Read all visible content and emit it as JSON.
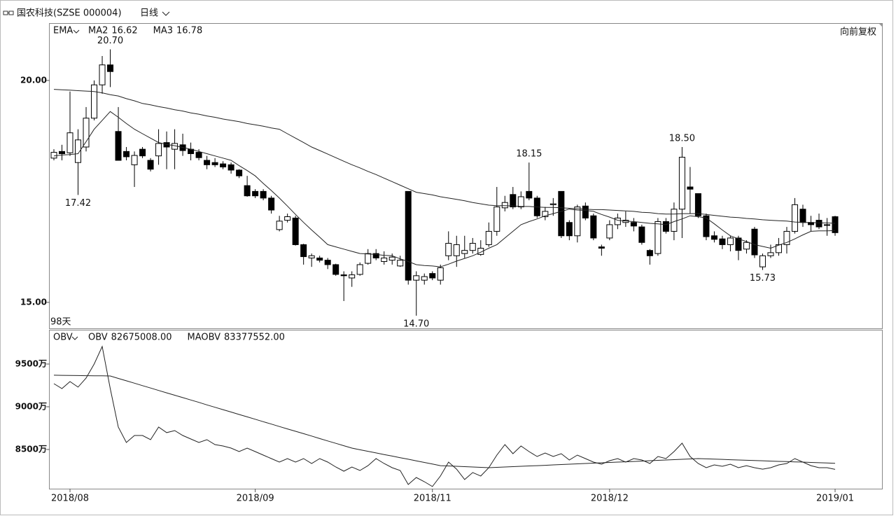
{
  "chart_data": [
    {
      "type": "candlestick",
      "title": "国农科技(SZSE 000004)",
      "period": "日线",
      "indicator": "EMA",
      "adjust": "向前复权",
      "span": "98天",
      "ylim": [
        14.43,
        21.26
      ],
      "yticks": [
        {
          "value": 20,
          "label": "20.00"
        },
        {
          "value": 15,
          "label": "15.00"
        }
      ],
      "up_color": "#ffffff",
      "down_color": "#000000",
      "open": [
        18.25,
        18.4,
        18.37,
        18.15,
        18.5,
        19.15,
        19.9,
        20.35,
        18.85,
        18.4,
        18.1,
        18.45,
        18.2,
        18.3,
        18.6,
        18.45,
        18.55,
        18.45,
        18.38,
        18.2,
        18.15,
        18.12,
        18.1,
        17.98,
        17.63,
        17.5,
        17.5,
        17.35,
        16.64,
        16.85,
        16.9,
        16.3,
        16.0,
        16.0,
        15.95,
        15.85,
        15.62,
        15.55,
        15.63,
        15.88,
        16.1,
        15.92,
        15.95,
        15.82,
        17.5,
        15.5,
        15.5,
        15.65,
        15.5,
        16.05,
        16.05,
        16.1,
        16.17,
        16.08,
        16.3,
        16.6,
        17.13,
        17.43,
        17.15,
        17.5,
        17.35,
        16.93,
        17.2,
        17.5,
        16.8,
        16.5,
        17.17,
        16.95,
        16.25,
        16.45,
        16.75,
        16.8,
        16.8,
        16.7,
        16.17,
        16.1,
        16.82,
        16.6,
        17.1,
        17.6,
        17.45,
        16.95,
        16.5,
        16.43,
        16.3,
        16.45,
        16.2,
        16.65,
        15.8,
        16.05,
        16.12,
        16.3,
        16.6,
        17.1,
        16.8,
        16.85,
        16.75,
        16.93
      ],
      "high": [
        18.45,
        18.55,
        19.75,
        18.9,
        19.4,
        20.0,
        20.55,
        20.7,
        19.4,
        18.5,
        18.4,
        18.5,
        18.25,
        18.9,
        18.85,
        18.9,
        18.8,
        18.6,
        18.45,
        18.3,
        18.25,
        18.18,
        18.15,
        18.0,
        17.85,
        17.55,
        17.55,
        17.4,
        16.95,
        17.0,
        16.95,
        16.32,
        16.1,
        16.05,
        16.0,
        15.87,
        15.7,
        15.7,
        15.9,
        16.2,
        16.2,
        16.15,
        16.1,
        16.05,
        17.5,
        15.7,
        15.65,
        15.7,
        15.85,
        16.6,
        16.5,
        16.5,
        16.45,
        16.4,
        16.8,
        17.6,
        17.4,
        17.6,
        17.5,
        18.15,
        17.4,
        17.15,
        17.35,
        17.5,
        16.85,
        17.2,
        17.25,
        17.0,
        16.3,
        16.85,
        17.0,
        17.05,
        16.9,
        16.75,
        16.2,
        16.9,
        16.9,
        17.25,
        18.5,
        18.05,
        17.45,
        17.0,
        16.6,
        16.5,
        16.5,
        16.5,
        16.4,
        16.7,
        16.1,
        16.3,
        16.45,
        16.7,
        17.35,
        17.2,
        16.95,
        17.0,
        16.9,
        16.95
      ],
      "low": [
        18.2,
        18.2,
        18.3,
        17.42,
        18.4,
        19.1,
        19.7,
        19.85,
        18.2,
        18.2,
        17.6,
        18.25,
        17.95,
        18.1,
        18.0,
        18.0,
        18.3,
        18.2,
        18.2,
        18.0,
        18.05,
        18.0,
        17.9,
        17.8,
        17.38,
        17.35,
        17.3,
        17.0,
        16.6,
        16.8,
        16.28,
        15.85,
        15.8,
        15.9,
        15.75,
        15.6,
        15.03,
        15.35,
        15.6,
        15.85,
        15.95,
        15.85,
        15.85,
        15.8,
        15.4,
        14.7,
        15.4,
        15.5,
        15.4,
        15.95,
        15.8,
        16.0,
        16.1,
        16.05,
        16.25,
        16.5,
        17.05,
        17.1,
        17.1,
        17.3,
        16.9,
        16.85,
        16.95,
        16.45,
        16.4,
        16.35,
        16.85,
        16.4,
        16.05,
        16.4,
        16.65,
        16.7,
        16.6,
        16.3,
        15.85,
        16.05,
        16.55,
        16.4,
        16.45,
        17.0,
        16.9,
        16.4,
        16.35,
        16.2,
        16.15,
        15.95,
        16.1,
        16.0,
        15.73,
        16.0,
        16.05,
        16.1,
        16.55,
        16.7,
        16.6,
        16.65,
        16.5,
        16.5
      ],
      "close": [
        18.38,
        18.35,
        18.82,
        18.66,
        19.15,
        19.9,
        20.35,
        20.2,
        18.2,
        18.28,
        18.31,
        18.3,
        18.0,
        18.58,
        18.5,
        18.58,
        18.42,
        18.35,
        18.26,
        18.1,
        18.1,
        18.05,
        17.98,
        17.85,
        17.4,
        17.4,
        17.35,
        17.08,
        16.83,
        16.93,
        16.3,
        16.03,
        16.05,
        15.95,
        15.85,
        15.63,
        15.6,
        15.62,
        15.85,
        16.1,
        16.0,
        16.0,
        16.02,
        15.95,
        15.5,
        15.6,
        15.58,
        15.55,
        15.78,
        16.33,
        16.3,
        16.17,
        16.33,
        16.22,
        16.6,
        17.15,
        17.25,
        17.15,
        17.38,
        17.35,
        16.95,
        17.05,
        17.22,
        16.5,
        16.5,
        17.15,
        16.9,
        16.45,
        16.22,
        16.75,
        16.9,
        16.85,
        16.72,
        16.35,
        16.05,
        16.82,
        16.6,
        17.1,
        18.27,
        17.55,
        16.95,
        16.48,
        16.42,
        16.3,
        16.45,
        16.17,
        16.35,
        16.07,
        16.05,
        16.12,
        16.3,
        16.6,
        17.2,
        16.8,
        16.75,
        16.7,
        16.75,
        16.57
      ],
      "series": [
        {
          "name": "MA2",
          "value_label": "16.62",
          "color": "#222222",
          "values": [
            18.3,
            18.32,
            18.33,
            18.35,
            18.62,
            18.9,
            19.1,
            19.3,
            19.17,
            19.03,
            18.9,
            18.8,
            18.7,
            18.6,
            18.56,
            18.53,
            18.49,
            18.45,
            18.4,
            18.35,
            18.3,
            18.25,
            18.2,
            18.08,
            17.97,
            17.85,
            17.68,
            17.52,
            17.35,
            17.17,
            16.98,
            16.8,
            16.63,
            16.47,
            16.3,
            16.25,
            16.2,
            16.15,
            16.1,
            16.09,
            16.08,
            16.06,
            16.05,
            15.98,
            15.92,
            15.85,
            15.83,
            15.82,
            15.8,
            15.86,
            15.93,
            15.99,
            16.05,
            16.13,
            16.22,
            16.3,
            16.45,
            16.6,
            16.75,
            16.82,
            16.88,
            16.95,
            17.0,
            17.05,
            17.1,
            17.08,
            17.07,
            17.05,
            16.98,
            16.92,
            16.85,
            16.83,
            16.82,
            16.8,
            16.78,
            16.77,
            16.75,
            16.82,
            16.88,
            16.95,
            16.93,
            16.9,
            16.77,
            16.63,
            16.5,
            16.43,
            16.37,
            16.3,
            16.26,
            16.22,
            16.29,
            16.35,
            16.43,
            16.52,
            16.6,
            16.61,
            16.61,
            16.62
          ]
        },
        {
          "name": "MA3",
          "value_label": "16.78",
          "color": "#222222",
          "values": [
            19.8,
            19.79,
            19.78,
            19.77,
            19.76,
            19.75,
            19.72,
            19.68,
            19.65,
            19.59,
            19.54,
            19.48,
            19.45,
            19.41,
            19.38,
            19.34,
            19.31,
            19.27,
            19.24,
            19.2,
            19.17,
            19.13,
            19.1,
            19.07,
            19.03,
            19.0,
            18.97,
            18.93,
            18.9,
            18.8,
            18.7,
            18.6,
            18.5,
            18.42,
            18.34,
            18.26,
            18.18,
            18.1,
            18.03,
            17.95,
            17.88,
            17.8,
            17.72,
            17.64,
            17.56,
            17.48,
            17.45,
            17.42,
            17.38,
            17.35,
            17.32,
            17.29,
            17.25,
            17.22,
            17.19,
            17.18,
            17.18,
            17.17,
            17.16,
            17.16,
            17.15,
            17.14,
            17.14,
            17.13,
            17.12,
            17.11,
            17.1,
            17.09,
            17.09,
            17.08,
            17.07,
            17.06,
            17.05,
            17.03,
            17.02,
            17.0,
            16.99,
            16.99,
            17.0,
            17.0,
            17.0,
            16.98,
            16.96,
            16.94,
            16.92,
            16.91,
            16.89,
            16.88,
            16.86,
            16.85,
            16.84,
            16.83,
            16.81,
            16.8,
            16.8,
            16.79,
            16.79,
            16.78
          ]
        }
      ],
      "annotations": [
        {
          "value": 20.7,
          "label": "20.70"
        },
        {
          "value": 17.42,
          "label": "17.42"
        },
        {
          "value": 14.7,
          "label": "14.70"
        },
        {
          "value": 18.15,
          "label": "18.15"
        },
        {
          "value": 18.5,
          "label": "18.50"
        },
        {
          "value": 15.73,
          "label": "15.73"
        }
      ]
    },
    {
      "type": "line",
      "indicator": "OBV",
      "ylim": [
        80410000,
        98930000
      ],
      "yticks": [
        {
          "value": 95000000,
          "label": "9500万"
        },
        {
          "value": 90000000,
          "label": "9000万"
        },
        {
          "value": 85000000,
          "label": "8500万"
        }
      ],
      "categories": [
        null,
        null,
        "2018/08",
        null,
        null,
        null,
        null,
        null,
        null,
        null,
        null,
        null,
        null,
        null,
        null,
        null,
        null,
        null,
        null,
        null,
        null,
        null,
        null,
        null,
        null,
        "2018/09",
        null,
        null,
        null,
        null,
        null,
        null,
        null,
        null,
        null,
        null,
        null,
        null,
        null,
        null,
        null,
        null,
        null,
        null,
        null,
        null,
        null,
        "2018/11",
        null,
        null,
        null,
        null,
        null,
        null,
        null,
        null,
        null,
        null,
        null,
        null,
        null,
        null,
        null,
        null,
        null,
        null,
        null,
        null,
        null,
        "2018/12",
        null,
        null,
        null,
        null,
        null,
        null,
        null,
        null,
        null,
        null,
        null,
        null,
        null,
        null,
        null,
        null,
        null,
        null,
        null,
        null,
        null,
        null,
        null,
        null,
        null,
        null,
        null,
        "2019/01"
      ],
      "series": [
        {
          "name": "OBV",
          "value_label": "82675008.00",
          "color": "#222222",
          "values": [
            92700000,
            92130000,
            92950000,
            92300000,
            93360000,
            95000000,
            97050000,
            92130000,
            87620000,
            85820000,
            86640000,
            86640000,
            86150000,
            87620000,
            86970000,
            87210000,
            86640000,
            86230000,
            85820000,
            86150000,
            85570000,
            85410000,
            85160000,
            84750000,
            85160000,
            84750000,
            84340000,
            83930000,
            83520000,
            83930000,
            83520000,
            83930000,
            83360000,
            83930000,
            83520000,
            82950000,
            82460000,
            82950000,
            82540000,
            83110000,
            83930000,
            83360000,
            82870000,
            82540000,
            80900000,
            81720000,
            81230000,
            80660000,
            81890000,
            83520000,
            82700000,
            81480000,
            82300000,
            81890000,
            82870000,
            84340000,
            85570000,
            84510000,
            85410000,
            84750000,
            84180000,
            84590000,
            84180000,
            84510000,
            83770000,
            84340000,
            83930000,
            83520000,
            83280000,
            83690000,
            83930000,
            83520000,
            83930000,
            83770000,
            83360000,
            84180000,
            83930000,
            84750000,
            85740000,
            84180000,
            83360000,
            82870000,
            83200000,
            83030000,
            83280000,
            82870000,
            83110000,
            82870000,
            82700000,
            82870000,
            83200000,
            83360000,
            83930000,
            83520000,
            83110000,
            82870000,
            82870000,
            82675008
          ]
        },
        {
          "name": "MAOBV",
          "value_label": "83377552.00",
          "color": "#222222",
          "values": [
            93690000,
            93680000,
            93660000,
            93650000,
            93640000,
            93630000,
            93620000,
            93600000,
            93320000,
            93040000,
            92760000,
            92470000,
            92190000,
            91910000,
            91630000,
            91350000,
            91070000,
            90790000,
            90510000,
            90220000,
            89940000,
            89660000,
            89380000,
            89100000,
            88820000,
            88540000,
            88250000,
            87970000,
            87690000,
            87410000,
            87130000,
            86850000,
            86570000,
            86280000,
            86000000,
            85720000,
            85440000,
            85160000,
            84970000,
            84790000,
            84600000,
            84410000,
            84230000,
            84040000,
            83860000,
            83670000,
            83480000,
            83300000,
            83110000,
            83070000,
            83030000,
            82990000,
            82950000,
            82910000,
            82870000,
            82910000,
            82950000,
            82990000,
            83030000,
            83070000,
            83110000,
            83150000,
            83200000,
            83240000,
            83280000,
            83320000,
            83360000,
            83400000,
            83440000,
            83480000,
            83520000,
            83560000,
            83600000,
            83640000,
            83690000,
            83730000,
            83770000,
            83810000,
            83850000,
            83890000,
            83930000,
            83900000,
            83870000,
            83840000,
            83800000,
            83770000,
            83740000,
            83710000,
            83680000,
            83640000,
            83610000,
            83580000,
            83550000,
            83520000,
            83480000,
            83450000,
            83420000,
            83377552
          ]
        }
      ]
    }
  ]
}
